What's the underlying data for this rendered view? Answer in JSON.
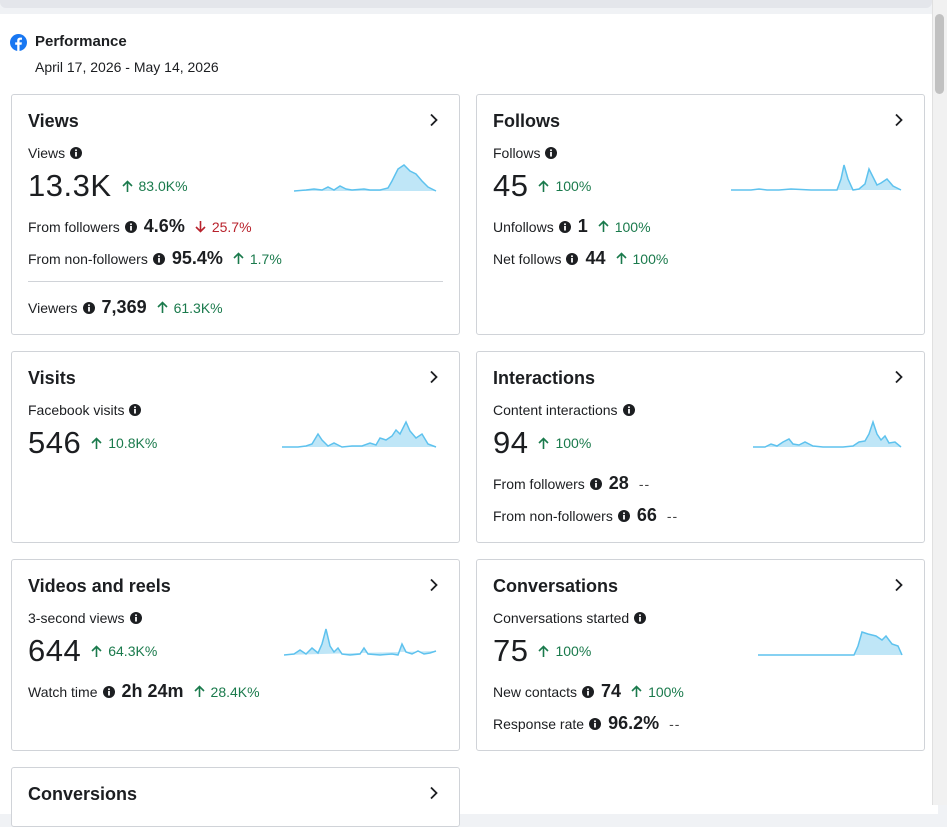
{
  "header": {
    "title": "Performance",
    "date_range": "April 17, 2026 - May 14, 2026"
  },
  "colors": {
    "brand": "#1877f2",
    "positive": "#1a7a4c",
    "negative": "#b8222c",
    "spark_fill": "#bfe6f7",
    "spark_line": "#5ec2ee"
  },
  "cards": {
    "views": {
      "title": "Views",
      "main_label": "Views",
      "main_value": "13.3K",
      "main_delta": "83.0K%",
      "from_followers_label": "From followers",
      "from_followers_value": "4.6%",
      "from_followers_delta": "25.7%",
      "from_nonfollowers_label": "From non-followers",
      "from_nonfollowers_value": "95.4%",
      "from_nonfollowers_delta": "1.7%",
      "viewers_label": "Viewers",
      "viewers_value": "7,369",
      "viewers_delta": "61.3K%"
    },
    "follows": {
      "title": "Follows",
      "main_label": "Follows",
      "main_value": "45",
      "main_delta": "100%",
      "unfollows_label": "Unfollows",
      "unfollows_value": "1",
      "unfollows_delta": "100%",
      "net_label": "Net follows",
      "net_value": "44",
      "net_delta": "100%"
    },
    "visits": {
      "title": "Visits",
      "main_label": "Facebook visits",
      "main_value": "546",
      "main_delta": "10.8K%"
    },
    "interactions": {
      "title": "Interactions",
      "main_label": "Content interactions",
      "main_value": "94",
      "main_delta": "100%",
      "from_followers_label": "From followers",
      "from_followers_value": "28",
      "from_followers_delta": "--",
      "from_nonfollowers_label": "From non-followers",
      "from_nonfollowers_value": "66",
      "from_nonfollowers_delta": "--"
    },
    "videos": {
      "title": "Videos and reels",
      "main_label": "3-second views",
      "main_value": "644",
      "main_delta": "64.3K%",
      "watch_label": "Watch time",
      "watch_value": "2h 24m",
      "watch_delta": "28.4K%"
    },
    "conversations": {
      "title": "Conversations",
      "main_label": "Conversations started",
      "main_value": "75",
      "main_delta": "100%",
      "contacts_label": "New contacts",
      "contacts_value": "74",
      "contacts_delta": "100%",
      "response_label": "Response rate",
      "response_value": "96.2%",
      "response_delta": "--"
    },
    "conversions": {
      "title": "Conversions"
    }
  }
}
